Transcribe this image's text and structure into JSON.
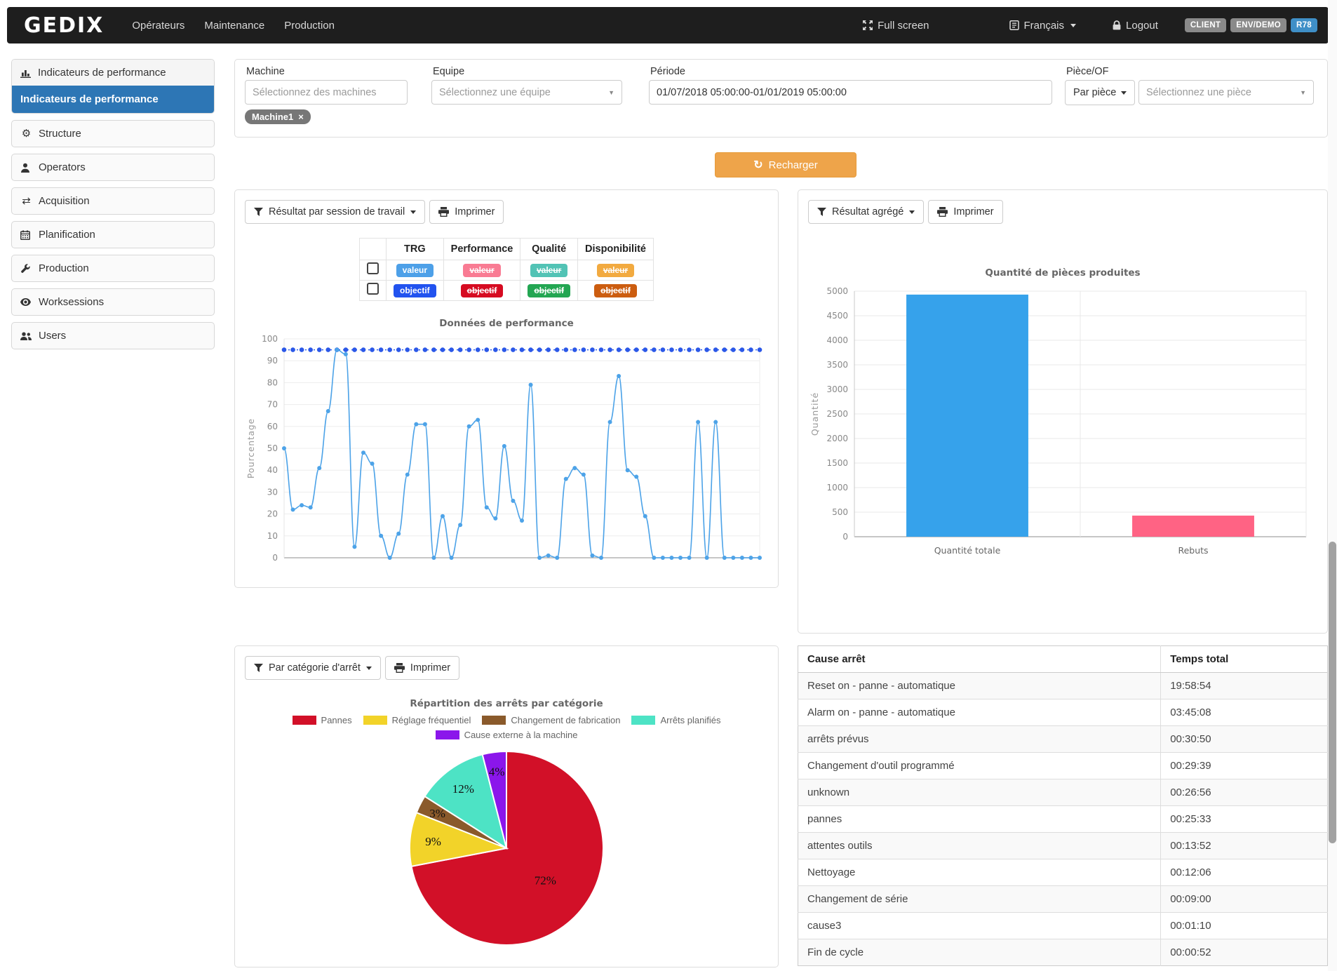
{
  "navbar": {
    "brand": "GEDIX",
    "menu": [
      "Opérateurs",
      "Maintenance",
      "Production"
    ],
    "fullscreen_label": "Full screen",
    "language_label": "Français",
    "logout_label": "Logout",
    "badges": [
      {
        "label": "CLIENT",
        "color": "#8a8a8a"
      },
      {
        "label": "ENV/DEMO",
        "color": "#8a8a8a"
      },
      {
        "label": "R78",
        "color": "#3f8fc7"
      }
    ]
  },
  "sidebar": {
    "panel_header": "Indicateurs de performance",
    "active_item": "Indicateurs de performance",
    "active_color": "#2d76b5",
    "items": [
      {
        "label": "Structure",
        "icon": "gear-icon"
      },
      {
        "label": "Operators",
        "icon": "user-icon"
      },
      {
        "label": "Acquisition",
        "icon": "exchange-icon"
      },
      {
        "label": "Planification",
        "icon": "calendar-icon"
      },
      {
        "label": "Production",
        "icon": "wrench-icon"
      },
      {
        "label": "Worksessions",
        "icon": "eye-icon"
      },
      {
        "label": "Users",
        "icon": "users-icon"
      }
    ]
  },
  "filters": {
    "machine": {
      "label": "Machine",
      "placeholder": "Sélectionnez des machines",
      "selected_tag": "Machine1"
    },
    "equipe": {
      "label": "Equipe",
      "placeholder": "Sélectionnez une équipe"
    },
    "periode": {
      "label": "Période",
      "value": "01/07/2018 05:00:00-01/01/2019 05:00:00"
    },
    "piece": {
      "label": "Pièce/OF",
      "mode_button": "Par pièce",
      "placeholder": "Sélectionnez une pièce"
    },
    "reload_label": "Recharger"
  },
  "performance_panel": {
    "filter_button": "Résultat par session de travail",
    "print_button": "Imprimer",
    "legend_table": {
      "columns": [
        "TRG",
        "Performance",
        "Qualité",
        "Disponibilité"
      ],
      "value_row": [
        "valeur",
        "valeur",
        "valeur",
        "valeur"
      ],
      "objective_row": [
        "objectif",
        "objectif",
        "objectif",
        "objectif"
      ],
      "value_colors": [
        "#4da0e8",
        "#f97b93",
        "#52c3b5",
        "#f2aa40"
      ],
      "objective_colors": [
        "#2253ef",
        "#d60b21",
        "#23a652",
        "#cc5d10"
      ],
      "struck": [
        false,
        true,
        true,
        true
      ]
    }
  },
  "aggregate_panel": {
    "filter_button": "Résultat agrégé",
    "print_button": "Imprimer"
  },
  "stops_panel": {
    "filter_button": "Par catégorie d'arrêt",
    "print_button": "Imprimer"
  },
  "stops_table": {
    "columns": [
      "Cause arrêt",
      "Temps total"
    ],
    "rows": [
      [
        "Reset on - panne - automatique",
        "19:58:54"
      ],
      [
        "Alarm on - panne - automatique",
        "03:45:08"
      ],
      [
        "arrêts prévus",
        "00:30:50"
      ],
      [
        "Changement d'outil programmé",
        "00:29:39"
      ],
      [
        "unknown",
        "00:26:56"
      ],
      [
        "pannes",
        "00:25:33"
      ],
      [
        "attentes outils",
        "00:13:52"
      ],
      [
        "Nettoyage",
        "00:12:06"
      ],
      [
        "Changement de série",
        "00:09:00"
      ],
      [
        "cause3",
        "00:01:10"
      ],
      [
        "Fin de cycle",
        "00:00:52"
      ]
    ]
  },
  "chart_data": [
    {
      "id": "performance_line",
      "type": "line",
      "title": "Données de performance",
      "ylabel": "Pourcentage",
      "ylim": [
        0,
        100
      ],
      "yticks": [
        0,
        10,
        20,
        30,
        40,
        50,
        60,
        70,
        80,
        90,
        100
      ],
      "grid": true,
      "series": [
        {
          "name": "TRG valeur",
          "color": "#4da3e8",
          "style": "solid",
          "values": [
            50,
            22,
            24,
            23,
            41,
            67,
            95,
            93,
            5,
            48,
            43,
            10,
            0,
            11,
            38,
            61,
            61,
            0,
            19,
            0,
            15,
            60,
            63,
            23,
            18,
            51,
            26,
            17,
            79,
            0,
            1,
            0,
            36,
            41,
            38,
            1,
            0,
            62,
            83,
            40,
            37,
            19,
            0,
            0,
            0,
            0,
            0,
            62,
            0,
            62,
            0,
            0,
            0,
            0,
            0
          ]
        },
        {
          "name": "TRG objectif",
          "color": "#2b58e8",
          "style": "dotted",
          "constant": 95,
          "count": 55
        }
      ]
    },
    {
      "id": "quantity_bar",
      "type": "bar",
      "title": "Quantité de pièces produites",
      "ylabel": "Quantité",
      "categories": [
        "Quantité totale",
        "Rebuts"
      ],
      "values": [
        4930,
        430
      ],
      "colors": [
        "#36a2eb",
        "#ff6384"
      ],
      "ylim": [
        0,
        5000
      ],
      "ytick_step": 500,
      "grid": true
    },
    {
      "id": "stops_pie",
      "type": "pie",
      "title": "Répartition des arrêts par catégorie",
      "labels": [
        "Pannes",
        "Réglage fréquentiel",
        "Changement de fabrication",
        "Arrêts planifiés",
        "Cause externe à la machine"
      ],
      "values": [
        72,
        9,
        3,
        12,
        4
      ],
      "value_labels": [
        "72%",
        "9%",
        "3%",
        "12%",
        "4%"
      ],
      "colors": [
        "#d21028",
        "#f2d329",
        "#8a5a2b",
        "#4de3c5",
        "#8b16eb"
      ],
      "legend_position": "top"
    }
  ]
}
